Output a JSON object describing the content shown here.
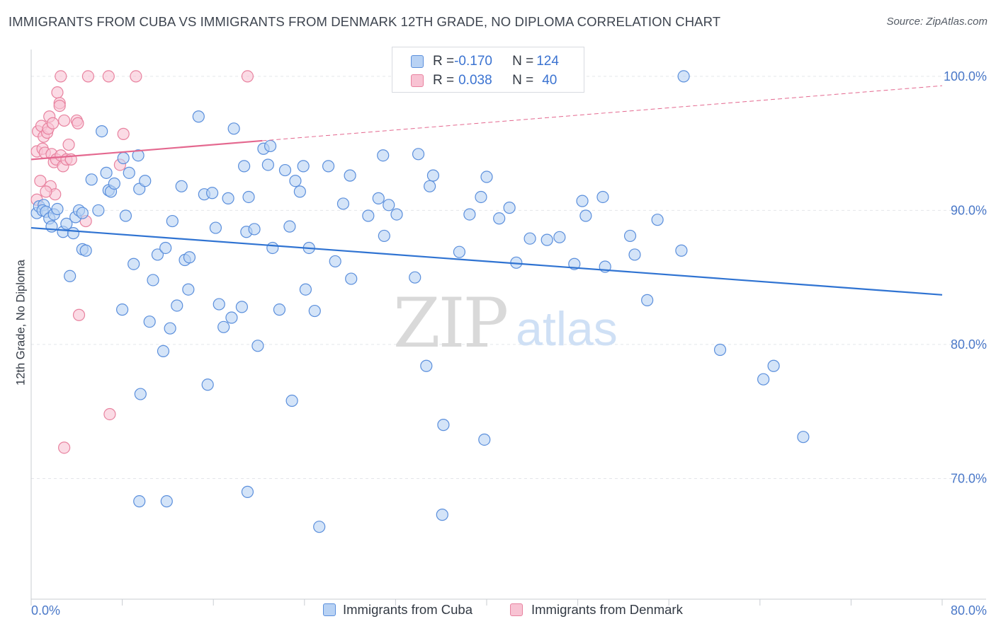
{
  "header": {
    "title": "IMMIGRANTS FROM CUBA VS IMMIGRANTS FROM DENMARK 12TH GRADE, NO DIPLOMA CORRELATION CHART",
    "source": "Source: ZipAtlas.com"
  },
  "watermark": {
    "zip": "ZIP",
    "atlas": "atlas"
  },
  "legend": {
    "rows": [
      {
        "r_label": "R = ",
        "r_value": "-0.170",
        "n_label": "N = ",
        "n_value": "124"
      },
      {
        "r_label": "R = ",
        "r_value": "0.038",
        "n_label": "N = ",
        "n_value": "40"
      }
    ]
  },
  "colors": {
    "cuba_fill": "#b8d2f4",
    "cuba_stroke": "#5b8fdc",
    "cuba_line": "#2f73d2",
    "denmark_fill": "#f8c3d3",
    "denmark_stroke": "#e8829f",
    "denmark_line": "#e4688f",
    "grid": "#e4e6ea",
    "tick_text": "#4a78c8"
  },
  "chart_data": {
    "type": "scatter",
    "title": "IMMIGRANTS FROM CUBA VS IMMIGRANTS FROM DENMARK 12TH GRADE, NO DIPLOMA CORRELATION CHART",
    "xlabel": "",
    "ylabel": "12th Grade, No Diploma",
    "xlim": [
      0,
      80
    ],
    "ylim": [
      61,
      102
    ],
    "x_tick_labels": [
      "0.0%",
      "80.0%"
    ],
    "y_ticks": [
      70,
      80,
      90,
      100
    ],
    "y_tick_labels": [
      "70.0%",
      "80.0%",
      "90.0%",
      "100.0%"
    ],
    "grid": true,
    "legend_position": "bottom-center",
    "series": [
      {
        "name": "Immigrants from Cuba",
        "r": -0.17,
        "n": 124,
        "trend": {
          "x": [
            0,
            80
          ],
          "y": [
            88.7,
            83.7
          ]
        },
        "points": [
          [
            0.5,
            89.8
          ],
          [
            0.7,
            90.3
          ],
          [
            1.1,
            90.4
          ],
          [
            1.0,
            90.0
          ],
          [
            1.3,
            89.9
          ],
          [
            1.6,
            89.4
          ],
          [
            1.8,
            88.8
          ],
          [
            2.0,
            89.7
          ],
          [
            2.3,
            90.1
          ],
          [
            2.8,
            88.4
          ],
          [
            3.1,
            89.0
          ],
          [
            3.7,
            88.3
          ],
          [
            3.9,
            89.5
          ],
          [
            4.2,
            90.0
          ],
          [
            4.5,
            89.8
          ],
          [
            3.4,
            85.1
          ],
          [
            4.5,
            87.1
          ],
          [
            4.8,
            87.0
          ],
          [
            5.3,
            92.3
          ],
          [
            5.9,
            90.0
          ],
          [
            6.2,
            95.9
          ],
          [
            6.6,
            92.8
          ],
          [
            6.8,
            91.5
          ],
          [
            7.0,
            91.4
          ],
          [
            7.3,
            92.0
          ],
          [
            8.1,
            93.9
          ],
          [
            8.3,
            89.6
          ],
          [
            8.6,
            92.8
          ],
          [
            9.0,
            86.0
          ],
          [
            9.4,
            94.1
          ],
          [
            9.5,
            91.6
          ],
          [
            10.0,
            92.2
          ],
          [
            10.4,
            81.7
          ],
          [
            10.7,
            84.8
          ],
          [
            11.1,
            86.7
          ],
          [
            11.6,
            79.5
          ],
          [
            11.8,
            87.2
          ],
          [
            12.2,
            81.2
          ],
          [
            12.4,
            89.2
          ],
          [
            12.8,
            82.9
          ],
          [
            13.2,
            91.8
          ],
          [
            13.5,
            86.3
          ],
          [
            13.8,
            84.1
          ],
          [
            13.9,
            86.5
          ],
          [
            14.7,
            97.0
          ],
          [
            15.2,
            91.2
          ],
          [
            15.5,
            77.0
          ],
          [
            15.9,
            91.3
          ],
          [
            16.2,
            88.7
          ],
          [
            16.5,
            83.0
          ],
          [
            16.9,
            81.3
          ],
          [
            17.3,
            90.9
          ],
          [
            17.6,
            82.0
          ],
          [
            17.8,
            96.1
          ],
          [
            18.5,
            82.8
          ],
          [
            18.7,
            93.3
          ],
          [
            18.9,
            88.4
          ],
          [
            19.1,
            91.0
          ],
          [
            19.6,
            88.6
          ],
          [
            19.9,
            79.9
          ],
          [
            20.4,
            94.6
          ],
          [
            20.8,
            93.4
          ],
          [
            21.0,
            94.8
          ],
          [
            21.2,
            87.2
          ],
          [
            21.8,
            82.6
          ],
          [
            22.3,
            93.0
          ],
          [
            22.7,
            88.8
          ],
          [
            22.9,
            75.8
          ],
          [
            23.2,
            92.2
          ],
          [
            23.6,
            91.4
          ],
          [
            23.9,
            93.3
          ],
          [
            24.1,
            84.1
          ],
          [
            24.4,
            87.2
          ],
          [
            24.9,
            82.5
          ],
          [
            26.1,
            93.3
          ],
          [
            26.7,
            86.2
          ],
          [
            27.4,
            90.5
          ],
          [
            28.0,
            92.6
          ],
          [
            28.1,
            84.9
          ],
          [
            29.6,
            89.6
          ],
          [
            30.5,
            90.9
          ],
          [
            30.9,
            94.1
          ],
          [
            31.0,
            88.1
          ],
          [
            31.4,
            90.4
          ],
          [
            32.1,
            89.7
          ],
          [
            33.7,
            85.0
          ],
          [
            34.0,
            94.2
          ],
          [
            34.7,
            78.4
          ],
          [
            35.0,
            91.8
          ],
          [
            35.3,
            92.6
          ],
          [
            36.2,
            74.0
          ],
          [
            37.6,
            86.9
          ],
          [
            38.5,
            89.7
          ],
          [
            39.5,
            91.0
          ],
          [
            39.8,
            72.9
          ],
          [
            40.0,
            92.5
          ],
          [
            41.1,
            89.4
          ],
          [
            42.0,
            90.2
          ],
          [
            42.6,
            86.1
          ],
          [
            43.8,
            87.9
          ],
          [
            45.3,
            87.8
          ],
          [
            46.4,
            88.0
          ],
          [
            47.7,
            86.0
          ],
          [
            48.4,
            90.7
          ],
          [
            48.7,
            89.6
          ],
          [
            50.2,
            91.0
          ],
          [
            50.4,
            85.8
          ],
          [
            52.6,
            88.1
          ],
          [
            53.0,
            86.7
          ],
          [
            54.1,
            83.3
          ],
          [
            55.0,
            89.3
          ],
          [
            57.1,
            87.0
          ],
          [
            57.3,
            100.0
          ],
          [
            60.5,
            79.6
          ],
          [
            64.3,
            77.4
          ],
          [
            65.2,
            78.4
          ],
          [
            67.8,
            73.1
          ],
          [
            11.9,
            68.3
          ],
          [
            9.5,
            68.3
          ],
          [
            19.0,
            69.0
          ],
          [
            25.3,
            66.4
          ],
          [
            36.1,
            67.3
          ],
          [
            8.0,
            82.6
          ],
          [
            9.6,
            76.3
          ]
        ]
      },
      {
        "name": "Immigrants from Denmark",
        "r": 0.038,
        "n": 40,
        "trend": {
          "x": [
            0,
            80
          ],
          "y": [
            93.8,
            99.3
          ],
          "solid_until_x": 20.3
        },
        "points": [
          [
            0.5,
            90.8
          ],
          [
            0.5,
            94.4
          ],
          [
            0.6,
            95.9
          ],
          [
            0.9,
            96.3
          ],
          [
            1.0,
            94.6
          ],
          [
            1.1,
            95.5
          ],
          [
            1.2,
            94.3
          ],
          [
            1.4,
            95.8
          ],
          [
            1.5,
            96.1
          ],
          [
            1.6,
            97.0
          ],
          [
            1.8,
            94.2
          ],
          [
            1.7,
            91.8
          ],
          [
            1.9,
            96.5
          ],
          [
            2.0,
            93.6
          ],
          [
            2.1,
            91.2
          ],
          [
            2.2,
            93.8
          ],
          [
            2.3,
            98.8
          ],
          [
            2.5,
            98.0
          ],
          [
            2.5,
            97.8
          ],
          [
            2.6,
            94.1
          ],
          [
            2.8,
            93.3
          ],
          [
            2.9,
            96.7
          ],
          [
            3.1,
            93.8
          ],
          [
            3.3,
            94.9
          ],
          [
            3.5,
            93.8
          ],
          [
            4.0,
            96.7
          ],
          [
            4.1,
            96.5
          ],
          [
            4.2,
            82.2
          ],
          [
            4.8,
            89.2
          ],
          [
            5.0,
            100.0
          ],
          [
            6.8,
            100.0
          ],
          [
            9.2,
            100.0
          ],
          [
            19.0,
            100.0
          ],
          [
            2.6,
            100.0
          ],
          [
            7.8,
            93.4
          ],
          [
            8.1,
            95.7
          ],
          [
            6.9,
            74.8
          ],
          [
            2.9,
            72.3
          ],
          [
            1.3,
            91.4
          ],
          [
            0.8,
            92.2
          ]
        ]
      }
    ]
  }
}
